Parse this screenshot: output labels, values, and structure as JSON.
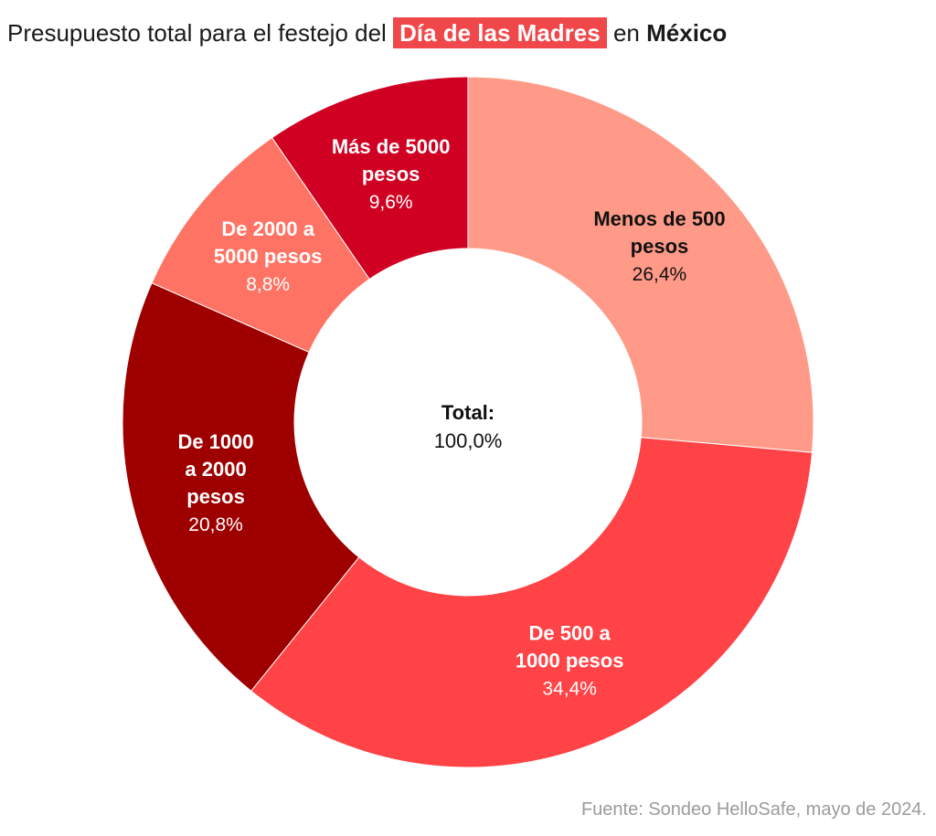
{
  "title": {
    "prefix": "Presupuesto total para el festejo del",
    "highlight": "Día de las Madres",
    "middle": "en",
    "country": "México"
  },
  "source": "Fuente: Sondeo HelloSafe, mayo de 2024.",
  "chart_data": {
    "type": "pie",
    "variant": "donut",
    "title": "Presupuesto total para el festejo del Día de las Madres en México",
    "slices": [
      {
        "label_lines": [
          "Menos de 500",
          "pesos"
        ],
        "value": 26.4,
        "pct_label": "26,4%",
        "color": "#ff9a88",
        "text_color": "#111111"
      },
      {
        "label_lines": [
          "De 500 a",
          "1000 pesos"
        ],
        "value": 34.4,
        "pct_label": "34,4%",
        "color": "#ff4346",
        "text_color": "#ffffff"
      },
      {
        "label_lines": [
          "De 1000",
          "a 2000",
          "pesos"
        ],
        "value": 20.8,
        "pct_label": "20,8%",
        "color": "#9e0000",
        "text_color": "#ffffff"
      },
      {
        "label_lines": [
          "De 2000 a",
          "5000 pesos"
        ],
        "value": 8.8,
        "pct_label": "8,8%",
        "color": "#ff7364",
        "text_color": "#ffffff"
      },
      {
        "label_lines": [
          "Más de 5000",
          "pesos"
        ],
        "value": 9.6,
        "pct_label": "9,6%",
        "color": "#d00022",
        "text_color": "#ffffff"
      }
    ],
    "center": {
      "title": "Total:",
      "value": "100,0%"
    }
  }
}
